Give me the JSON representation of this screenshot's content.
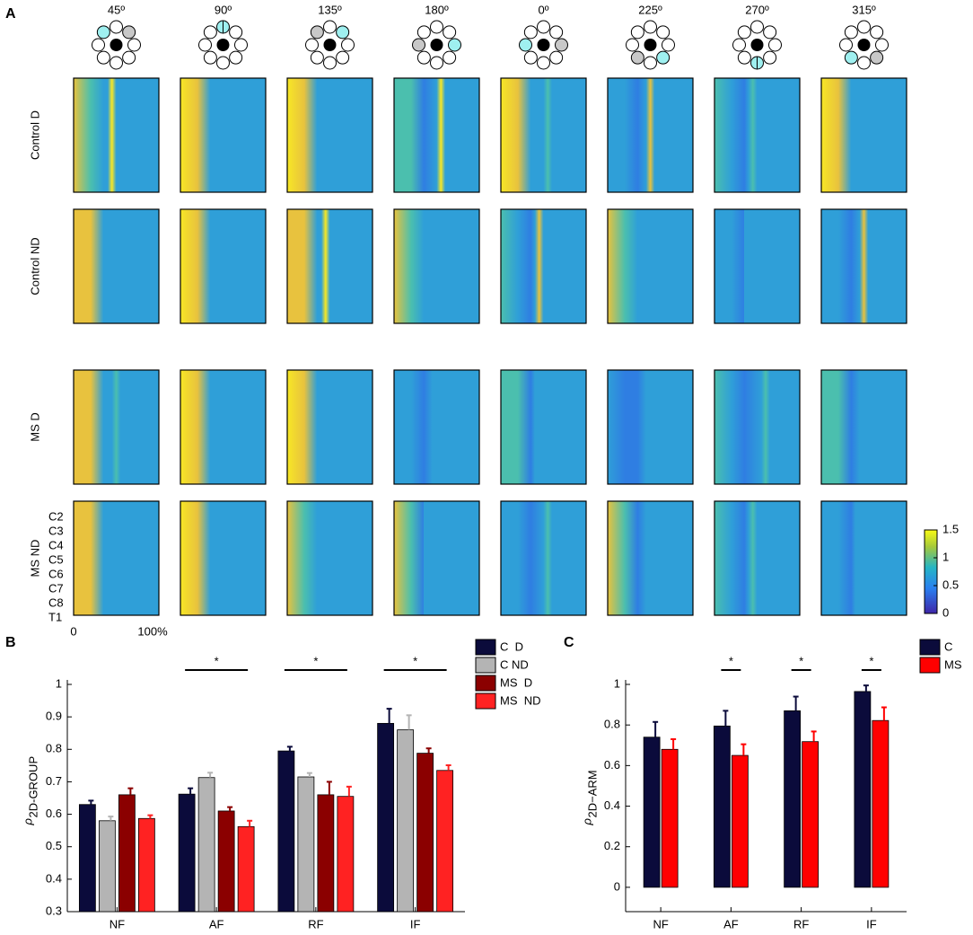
{
  "panel_a": {
    "label": "A",
    "angles": [
      "45º",
      "90º",
      "135º",
      "180º",
      "0º",
      "225º",
      "270º",
      "315º"
    ],
    "rows": [
      "Control D",
      "Control ND",
      "MS D",
      "MS ND"
    ],
    "segment_labels": [
      "C2",
      "C3",
      "C4",
      "C5",
      "C6",
      "C7",
      "C8",
      "T1"
    ],
    "x_labels": [
      "0",
      "100%"
    ],
    "colorbar": {
      "lim": [
        0,
        1.5
      ],
      "ticks": [
        0,
        0.5,
        1,
        1.5
      ]
    }
  },
  "chart_data": [
    {
      "type": "bar",
      "label": "B",
      "y_label": {
        "symbol": "ρ",
        "subscript": "2D-GROUP"
      },
      "categories": [
        "NF",
        "AF",
        "RF",
        "IF"
      ],
      "series": [
        {
          "name": "C  D",
          "color": "#0b0b3b",
          "values": [
            0.63,
            0.662,
            0.795,
            0.88
          ],
          "errors": [
            0.012,
            0.018,
            0.013,
            0.045
          ]
        },
        {
          "name": "C ND",
          "color": "#b4b4b4",
          "values": [
            0.58,
            0.713,
            0.715,
            0.86
          ],
          "errors": [
            0.013,
            0.015,
            0.012,
            0.045
          ]
        },
        {
          "name": "MS  D",
          "color": "#8b0000",
          "values": [
            0.66,
            0.61,
            0.66,
            0.788
          ],
          "errors": [
            0.02,
            0.012,
            0.04,
            0.015
          ]
        },
        {
          "name": "MS  ND",
          "color": "#ff2222",
          "values": [
            0.587,
            0.562,
            0.655,
            0.735
          ],
          "errors": [
            0.01,
            0.018,
            0.03,
            0.016
          ]
        }
      ],
      "ylim": [
        0.3,
        1
      ],
      "yticks": [
        0.3,
        0.4,
        0.5,
        0.6,
        0.7,
        0.8,
        0.9,
        1
      ],
      "significance_marker": "*",
      "significant": [
        "AF",
        "RF",
        "IF"
      ],
      "legend": "right"
    },
    {
      "type": "bar",
      "label": "C",
      "y_label": {
        "symbol": "ρ",
        "subscript": "2D−ARM"
      },
      "categories": [
        "NF",
        "AF",
        "RF",
        "IF"
      ],
      "series": [
        {
          "name": "C",
          "color": "#0b0b3b",
          "values": [
            0.74,
            0.795,
            0.87,
            0.965
          ],
          "errors": [
            0.075,
            0.075,
            0.07,
            0.03
          ]
        },
        {
          "name": "MS",
          "color": "#ff0000",
          "values": [
            0.68,
            0.65,
            0.718,
            0.822
          ],
          "errors": [
            0.05,
            0.055,
            0.05,
            0.065
          ]
        }
      ],
      "ylim": [
        -0.12,
        1
      ],
      "yticks": [
        0,
        0.2,
        0.4,
        0.6,
        0.8,
        1
      ],
      "significance_marker": "*",
      "significant": [
        "AF",
        "RF",
        "IF"
      ],
      "legend": "right"
    }
  ]
}
